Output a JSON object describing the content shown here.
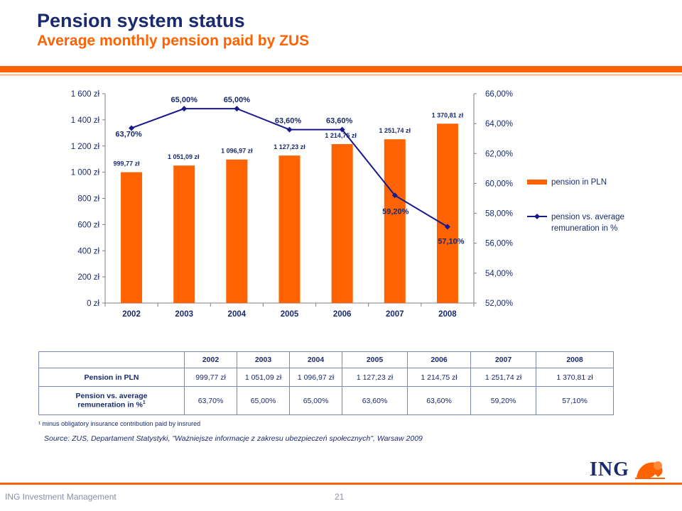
{
  "page": {
    "title": "Pension system status",
    "subtitle": "Average monthly pension paid by ZUS",
    "footnote": "¹ minus obligatory insurance contribution paid by insrured",
    "source": "Source: ZUS, Departament Statystyki, \"Ważniejsze informacje z zakresu ubezpieczeń społecznych\", Warsaw 2009",
    "footer_left": "ING Investment Management",
    "page_number": "21",
    "logo_text": "ING",
    "colors": {
      "accent": "#ff6200",
      "navy": "#1a2a6c"
    }
  },
  "chart_data": {
    "type": "bar",
    "categories": [
      "2002",
      "2003",
      "2004",
      "2005",
      "2006",
      "2007",
      "2008"
    ],
    "series": [
      {
        "name": "pension in PLN",
        "type": "bar",
        "axis": "left",
        "color": "#ff6200",
        "values": [
          999.77,
          1051.09,
          1096.97,
          1127.23,
          1214.75,
          1251.74,
          1370.81
        ],
        "labels": [
          "999,77 zł",
          "1 051,09 zł",
          "1 096,97 zł",
          "1 127,23 zł",
          "1 214,75 zł",
          "1 251,74 zł",
          "1 370,81 zł"
        ]
      },
      {
        "name": "pension vs. average remuneration in %",
        "type": "line",
        "axis": "right",
        "color": "#1a1a8c",
        "values": [
          63.7,
          65.0,
          65.0,
          63.6,
          63.6,
          59.2,
          57.1
        ],
        "labels": [
          "63,70%",
          "65,00%",
          "65,00%",
          "63,60%",
          "63,60%",
          "59,20%",
          "57,10%"
        ]
      }
    ],
    "y_left": {
      "ylim": [
        0,
        1600
      ],
      "ticks": [
        "0 zł",
        "200 zł",
        "400 zł",
        "600 zł",
        "800 zł",
        "1 000 zł",
        "1 200 zł",
        "1 400 zł",
        "1 600 zł"
      ]
    },
    "y_right": {
      "ylim": [
        52,
        66
      ],
      "ticks": [
        "52,00%",
        "54,00%",
        "56,00%",
        "58,00%",
        "60,00%",
        "62,00%",
        "64,00%",
        "66,00%"
      ]
    },
    "legend": {
      "position": "right",
      "bar_label": "pension in PLN",
      "line_label_1": "pension vs. average",
      "line_label_2": "remuneration in %"
    },
    "grid": false
  },
  "table": {
    "header": [
      "",
      "2002",
      "2003",
      "2004",
      "2005",
      "2006",
      "2007",
      "2008"
    ],
    "row1_label": "Pension in PLN",
    "row1": [
      "999,77 zł",
      "1 051,09 zł",
      "1 096,97 zł",
      "1 127,23 zł",
      "1 214,75 zł",
      "1 251,74 zł",
      "1 370,81 zł"
    ],
    "row2_label_1": "Pension vs. average",
    "row2_label_2": "remuneration in %",
    "row2_sup": "1",
    "row2": [
      "63,70%",
      "65,00%",
      "65,00%",
      "63,60%",
      "63,60%",
      "59,20%",
      "57,10%"
    ]
  }
}
